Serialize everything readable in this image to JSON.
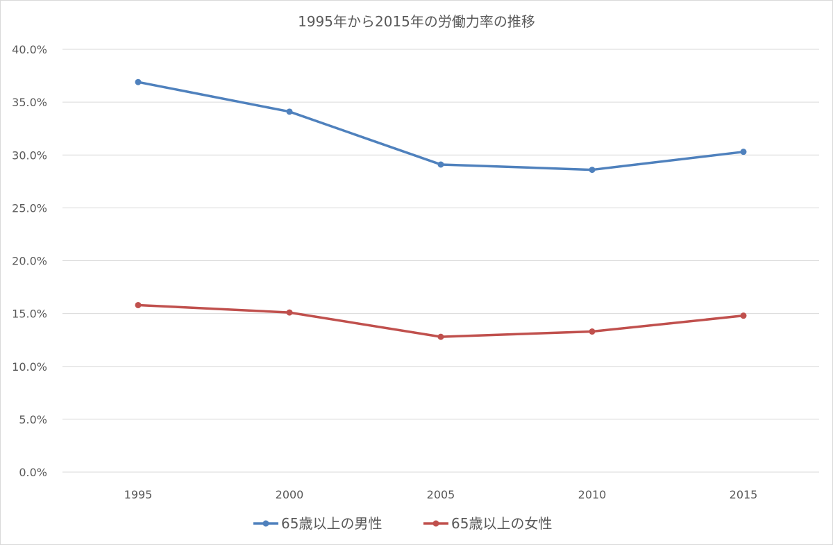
{
  "chart_data": {
    "type": "line",
    "title": "1995年から2015年の労働力率の推移",
    "categories": [
      "1995",
      "2000",
      "2005",
      "2010",
      "2015"
    ],
    "ylim": [
      0,
      40
    ],
    "yticks": [
      "0.0%",
      "5.0%",
      "10.0%",
      "15.0%",
      "20.0%",
      "25.0%",
      "30.0%",
      "35.0%",
      "40.0%"
    ],
    "ytick_values": [
      0,
      5,
      10,
      15,
      20,
      25,
      30,
      35,
      40
    ],
    "grid": true,
    "legend_position": "bottom",
    "series": [
      {
        "name": "65歳以上の男性",
        "color": "#4F81BD",
        "values": [
          36.9,
          34.1,
          29.1,
          28.6,
          30.3
        ]
      },
      {
        "name": "65歳以上の女性",
        "color": "#C0504D",
        "values": [
          15.8,
          15.1,
          12.8,
          13.3,
          14.8
        ]
      }
    ]
  }
}
